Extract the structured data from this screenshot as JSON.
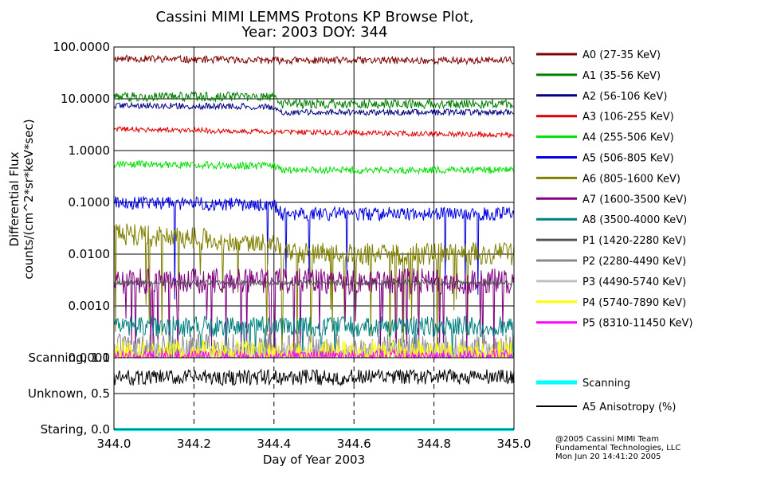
{
  "title_line1": "Cassini MIMI LEMMS Protons KP Browse Plot,",
  "title_line2": "Year: 2003 DOY: 344",
  "copyright": [
    "@2005 Cassini MIMI Team",
    "Fundamental Technologies, LLC",
    "Mon Jun 20 14:41:20 2005"
  ],
  "chart_data": [
    {
      "type": "line",
      "name": "flux",
      "xlabel": "Day of Year 2003",
      "ylabel_line1": "Differential Flux",
      "ylabel_line2": "counts/(cm^2*sr*keV*sec)",
      "xlim": [
        344.0,
        345.0
      ],
      "ylim": [
        0.0001,
        100
      ],
      "yscale": "log",
      "xticks": [
        344.0,
        344.2,
        344.4,
        344.6,
        344.8,
        345.0
      ],
      "xtick_labels": [
        "344.0",
        "344.2",
        "344.4",
        "344.6",
        "344.8",
        "345.0"
      ],
      "yticks": [
        100,
        10,
        1,
        0.1,
        0.01,
        0.001,
        0.0001
      ],
      "ytick_labels": [
        "100.0000",
        "10.0000",
        "1.0000",
        "0.1000",
        "0.0100",
        "0.0010",
        "0.0001"
      ],
      "grid": true,
      "legend": "right",
      "series": [
        {
          "name": "A0 (27-35 KeV)",
          "color": "#800000",
          "levels": [
            [
              344.0,
              60
            ],
            [
              344.4,
              55
            ],
            [
              345.0,
              55
            ]
          ]
        },
        {
          "name": "A1 (35-56 KeV)",
          "color": "#008000",
          "levels": [
            [
              344.0,
              11
            ],
            [
              344.4,
              11
            ],
            [
              344.42,
              8
            ],
            [
              345.0,
              8
            ]
          ]
        },
        {
          "name": "A2 (56-106 KeV)",
          "color": "#000080",
          "levels": [
            [
              344.0,
              7.5
            ],
            [
              344.4,
              7
            ],
            [
              344.42,
              5.5
            ],
            [
              345.0,
              5.5
            ]
          ]
        },
        {
          "name": "A3 (106-255 KeV)",
          "color": "#e00000",
          "levels": [
            [
              344.0,
              2.6
            ],
            [
              344.4,
              2.3
            ],
            [
              345.0,
              2.0
            ]
          ]
        },
        {
          "name": "A4 (255-506 KeV)",
          "color": "#00e000",
          "levels": [
            [
              344.0,
              0.55
            ],
            [
              344.4,
              0.5
            ],
            [
              344.42,
              0.42
            ],
            [
              345.0,
              0.42
            ]
          ]
        },
        {
          "name": "A5 (506-805 KeV)",
          "color": "#0000e0",
          "levels": [
            [
              344.0,
              0.1
            ],
            [
              344.4,
              0.09
            ],
            [
              344.42,
              0.06
            ],
            [
              345.0,
              0.06
            ]
          ]
        },
        {
          "name": "A6 (805-1600 KeV)",
          "color": "#808000",
          "levels": [
            [
              344.0,
              0.025
            ],
            [
              344.4,
              0.015
            ],
            [
              344.42,
              0.01
            ],
            [
              345.0,
              0.01
            ]
          ]
        },
        {
          "name": "A7 (1600-3500 KeV)",
          "color": "#800080",
          "levels": [
            [
              344.0,
              0.003
            ],
            [
              345.0,
              0.003
            ]
          ]
        },
        {
          "name": "A8 (3500-4000 KeV)",
          "color": "#008080",
          "levels": [
            [
              344.0,
              0.0004
            ],
            [
              345.0,
              0.0004
            ]
          ]
        },
        {
          "name": "P1 (1420-2280 KeV)",
          "color": "#555555",
          "levels": [
            [
              344.0,
              0.0028
            ],
            [
              345.0,
              0.0028
            ]
          ]
        },
        {
          "name": "P2 (2280-4490 KeV)",
          "color": "#888888",
          "levels": [
            [
              344.0,
              0.00013
            ],
            [
              345.0,
              0.00013
            ]
          ]
        },
        {
          "name": "P3 (4490-5740 KeV)",
          "color": "#c0c0c0",
          "levels": [
            [
              344.0,
              0.00011
            ],
            [
              345.0,
              0.00011
            ]
          ]
        },
        {
          "name": "P4 (5740-7890 KeV)",
          "color": "#ffff00",
          "levels": [
            [
              344.0,
              0.00011
            ],
            [
              345.0,
              0.00011
            ]
          ]
        },
        {
          "name": "P5 (8310-11450 KeV)",
          "color": "#ff00ff",
          "levels": [
            [
              344.0,
              0.0001
            ],
            [
              345.0,
              0.0001
            ]
          ]
        }
      ]
    },
    {
      "type": "line",
      "name": "scanning",
      "xlim": [
        344.0,
        345.0
      ],
      "ylim": [
        0.0,
        1.0
      ],
      "ytick_labels": [
        "Scanning, 1.0",
        "Unknown, 0.5",
        "Staring, 0.0"
      ],
      "yticks": [
        1.0,
        0.5,
        0.0
      ],
      "series": [
        {
          "name": "Scanning",
          "color": "#00ffff",
          "values": [
            [
              344.0,
              0.0
            ],
            [
              345.0,
              0.0
            ]
          ]
        },
        {
          "name": "A5 Anisotropy (%)",
          "color": "#000000",
          "levels": [
            [
              344.0,
              0.72
            ],
            [
              345.0,
              0.73
            ]
          ]
        }
      ]
    }
  ]
}
